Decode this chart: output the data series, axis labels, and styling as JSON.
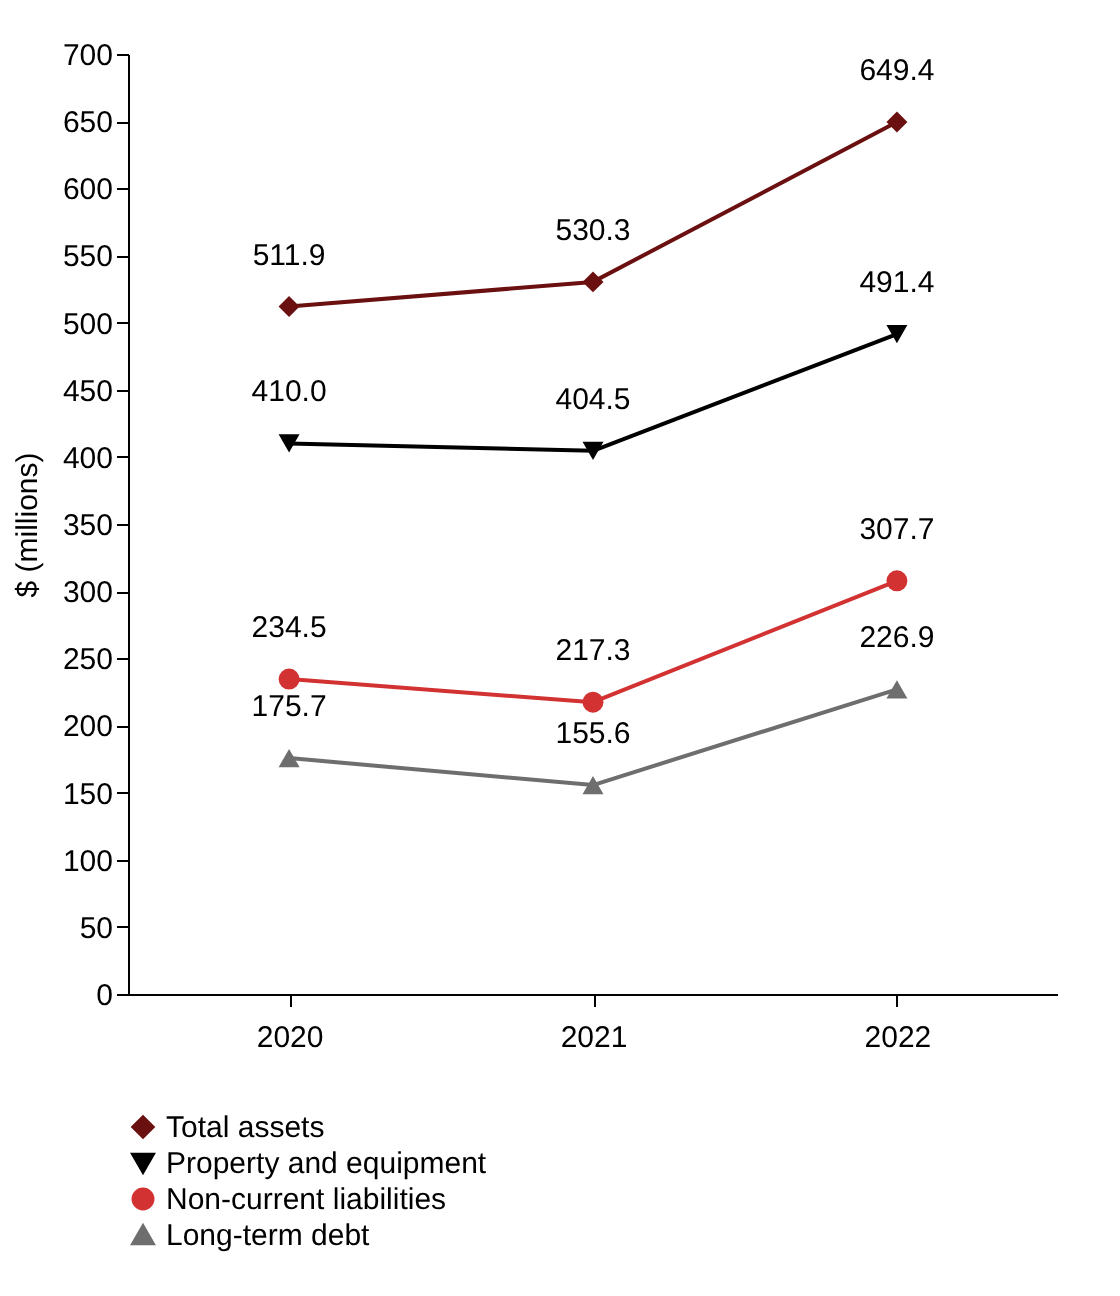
{
  "chart_data": {
    "type": "line",
    "ylabel": "$ (millions)",
    "categories": [
      "2020",
      "2021",
      "2022"
    ],
    "ylim": [
      0,
      700
    ],
    "yticks": [
      0,
      50,
      100,
      150,
      200,
      250,
      300,
      350,
      400,
      450,
      500,
      550,
      600,
      650,
      700
    ],
    "grid": false,
    "legend": "bottom",
    "data_labels": true,
    "line_style": "solid",
    "series": [
      {
        "name": "Total assets",
        "color": "#6b1010",
        "marker": "diamond",
        "values": [
          511.9,
          530.3,
          649.4
        ],
        "value_labels": [
          "511.9",
          "530.3",
          "649.4"
        ]
      },
      {
        "name": "Property and equipment",
        "color": "#000000",
        "marker": "triangle-down",
        "values": [
          410.0,
          404.5,
          491.4
        ],
        "value_labels": [
          "410.0",
          "404.5",
          "491.4"
        ]
      },
      {
        "name": "Non-current liabilities",
        "color": "#d23232",
        "marker": "circle",
        "values": [
          234.5,
          217.3,
          307.7
        ],
        "value_labels": [
          "234.5",
          "217.3",
          "307.7"
        ]
      },
      {
        "name": "Long-term debt",
        "color": "#6e6e6e",
        "marker": "triangle",
        "values": [
          175.7,
          155.6,
          226.9
        ],
        "value_labels": [
          "175.7",
          "155.6",
          "226.9"
        ]
      }
    ]
  }
}
